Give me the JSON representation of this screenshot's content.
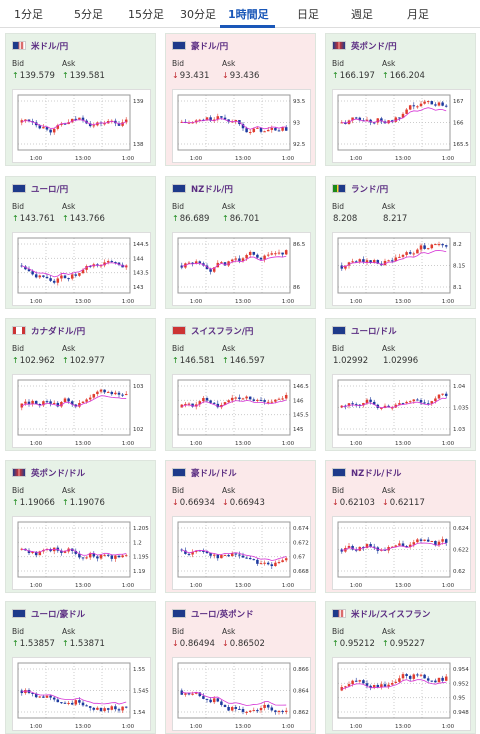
{
  "tabs": [
    "1分足",
    "5分足",
    "15分足",
    "30分足",
    "1時間足",
    "日足",
    "週足",
    "月足"
  ],
  "active_tab_index": 4,
  "labels": {
    "bid": "Bid",
    "ask": "Ask"
  },
  "colors": {
    "up": "#1a8a1a",
    "down": "#c0262d",
    "pair": "#5b2d82",
    "active_tab": "#1a57b8",
    "candle_up": "#e03c2f",
    "candle_down": "#1e3a9f",
    "ma": "#d633d6"
  },
  "cards": [
    {
      "pair": "米ドル/円",
      "flag": "flag-us-icon",
      "dir": "up",
      "bid": "139.579",
      "ask": "139.581",
      "yticks": [
        "139",
        "138"
      ],
      "xticks": [
        "1:00",
        "13:00",
        "1:00"
      ]
    },
    {
      "pair": "豪ドル/円",
      "flag": "flag-au-icon",
      "dir": "down",
      "bid": "93.431",
      "ask": "93.436",
      "yticks": [
        "93.5",
        "93",
        "92.5"
      ],
      "xticks": [
        "1:00",
        "13:00",
        "1:00"
      ]
    },
    {
      "pair": "英ポンド/円",
      "flag": "flag-gb-icon",
      "dir": "up",
      "bid": "166.197",
      "ask": "166.204",
      "yticks": [
        "167",
        "166",
        "165.5"
      ],
      "xticks": [
        "1:00",
        "13:00",
        "1:00"
      ]
    },
    {
      "pair": "ユーロ/円",
      "flag": "flag-eu-icon",
      "dir": "up",
      "bid": "143.761",
      "ask": "143.766",
      "yticks": [
        "144.5",
        "144",
        "143.5",
        "143"
      ],
      "xticks": [
        "1:00",
        "13:00",
        "1:00"
      ]
    },
    {
      "pair": "NZドル/円",
      "flag": "flag-nz-icon",
      "dir": "up",
      "bid": "86.689",
      "ask": "86.701",
      "yticks": [
        "86.5",
        "86"
      ],
      "xticks": [
        "1:00",
        "13:00",
        "1:00"
      ]
    },
    {
      "pair": "ランド/円",
      "flag": "flag-za-icon",
      "dir": "none",
      "bid": "8.208",
      "ask": "8.217",
      "yticks": [
        "8.2",
        "8.15",
        "8.1"
      ],
      "xticks": [
        "1:00",
        "13:00",
        "1:00"
      ]
    },
    {
      "pair": "カナダドル/円",
      "flag": "flag-ca-icon",
      "dir": "up",
      "bid": "102.962",
      "ask": "102.977",
      "yticks": [
        "103",
        "102"
      ],
      "xticks": [
        "1:00",
        "13:00",
        "1:00"
      ]
    },
    {
      "pair": "スイスフラン/円",
      "flag": "flag-ch-icon",
      "dir": "up",
      "bid": "146.581",
      "ask": "146.597",
      "yticks": [
        "146.5",
        "146",
        "145.5",
        "145"
      ],
      "xticks": [
        "1:00",
        "13:00",
        "1:00"
      ]
    },
    {
      "pair": "ユーロ/ドル",
      "flag": "flag-eu-icon",
      "dir": "none",
      "bid": "1.02992",
      "ask": "1.02996",
      "yticks": [
        "1.04",
        "1.035",
        "1.03"
      ],
      "xticks": [
        "1:00",
        "13:00",
        "1:00"
      ]
    },
    {
      "pair": "英ポンド/ドル",
      "flag": "flag-gb-icon",
      "dir": "up",
      "bid": "1.19066",
      "ask": "1.19076",
      "yticks": [
        "1.205",
        "1.2",
        "1.195",
        "1.19"
      ],
      "xticks": [
        "1:00",
        "13:00",
        "1:00"
      ]
    },
    {
      "pair": "豪ドル/ドル",
      "flag": "flag-au-icon",
      "dir": "down",
      "bid": "0.66934",
      "ask": "0.66943",
      "yticks": [
        "0.674",
        "0.672",
        "0.67",
        "0.668"
      ],
      "xticks": [
        "1:00",
        "13:00",
        "1:00"
      ]
    },
    {
      "pair": "NZドル/ドル",
      "flag": "flag-nz-icon",
      "dir": "down",
      "bid": "0.62103",
      "ask": "0.62117",
      "yticks": [
        "0.624",
        "0.622",
        "0.62"
      ],
      "xticks": [
        "1:00",
        "13:00",
        "1:00"
      ]
    },
    {
      "pair": "ユーロ/豪ドル",
      "flag": "flag-eu-icon",
      "dir": "up",
      "bid": "1.53857",
      "ask": "1.53871",
      "yticks": [
        "1.55",
        "1.545",
        "1.54"
      ],
      "xticks": [
        "1:00",
        "13:00",
        "1:00"
      ]
    },
    {
      "pair": "ユーロ/英ポンド",
      "flag": "flag-eu-icon",
      "dir": "down",
      "bid": "0.86494",
      "ask": "0.86502",
      "yticks": [
        "0.866",
        "0.864",
        "0.862"
      ],
      "xticks": [
        "1:00",
        "13:00",
        "1:00"
      ]
    },
    {
      "pair": "米ドル/スイスフラン",
      "flag": "flag-us-icon",
      "dir": "up",
      "bid": "0.95212",
      "ask": "0.95227",
      "yticks": [
        "0.954",
        "0.952",
        "0.95",
        "0.948"
      ],
      "xticks": [
        "1:00",
        "13:00",
        "1:00"
      ]
    }
  ]
}
